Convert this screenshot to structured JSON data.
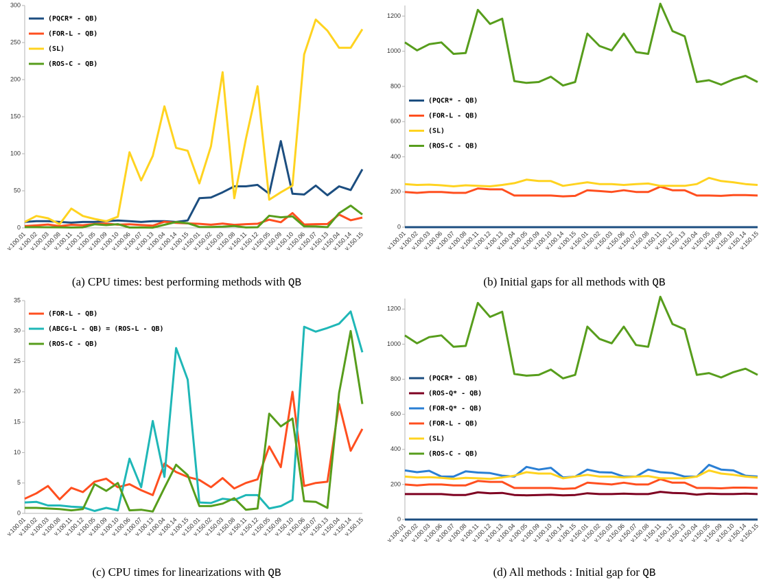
{
  "chart_data": [
    {
      "type": "line",
      "caption_label": "(a)",
      "caption": "CPU times: best performing methods with",
      "caption_code": "QB",
      "categories": [
        "v.100.01",
        "v.100.02",
        "v.100.03",
        "v.100.08",
        "v.100.11",
        "v.100.12",
        "v.100.05",
        "v.100.09",
        "v.100.10",
        "v.100.06",
        "v.100.07",
        "v.100.13",
        "v.100.04",
        "v.100.14",
        "v.100.15",
        "v.150.01",
        "v.150.02",
        "v.150.03",
        "v.150.08",
        "v.150.11",
        "v.150.12",
        "v.150.05",
        "v.150.09",
        "v.150.10",
        "v.150.06",
        "v.150.07",
        "v.150.13",
        "v.150.04",
        "v.150.14",
        "v.150.15"
      ],
      "ylim": [
        0,
        300
      ],
      "yticks": [
        0,
        50,
        100,
        150,
        200,
        250,
        300
      ],
      "grid": false,
      "legend": "upper left",
      "series": [
        {
          "name": "(PQCR* - QB)",
          "color": "#1c4e80",
          "values": [
            8,
            9,
            9,
            8,
            7,
            8,
            8,
            9,
            10,
            9,
            8,
            9,
            9,
            8,
            10,
            40,
            41,
            48,
            56,
            56,
            58,
            46,
            117,
            46,
            45,
            57,
            44,
            56,
            51,
            79
          ]
        },
        {
          "name": "(FOR-L - QB)",
          "color": "#ff4f1f",
          "values": [
            2.4,
            3.3,
            4.5,
            2.3,
            4.2,
            3.5,
            5.2,
            5.7,
            4.3,
            4.8,
            3.8,
            3,
            8.2,
            6.8,
            6,
            5.5,
            4.3,
            5.8,
            4.1,
            5,
            5.6,
            11,
            7.6,
            20,
            4.5,
            5,
            5.2,
            18,
            10.3,
            13.9
          ]
        },
        {
          "name": "(SL)",
          "color": "#ffd320",
          "values": [
            8,
            16,
            13,
            5,
            26,
            16,
            12,
            9,
            15,
            102,
            64,
            97,
            164,
            108,
            104,
            60,
            110,
            210,
            40,
            120,
            191,
            38,
            48,
            57,
            234,
            281,
            266,
            243,
            243,
            268
          ]
        },
        {
          "name": "(ROS-C - QB)",
          "color": "#579d1c",
          "values": [
            0.9,
            0.9,
            0.8,
            0.7,
            0.5,
            0.7,
            4.8,
            3.7,
            5,
            0.5,
            0.6,
            0.3,
            4.2,
            8,
            6.3,
            1.2,
            1.2,
            1.6,
            2.5,
            0.6,
            0.8,
            16.4,
            14.3,
            15.6,
            2,
            1.9,
            0.9,
            19.8,
            30,
            18
          ]
        }
      ]
    },
    {
      "type": "line",
      "caption_label": "(b)",
      "caption": "Initial gaps for all methods with",
      "caption_code": "QB",
      "categories": [
        "v.100.01",
        "v.100.02",
        "v.100.03",
        "v.100.06",
        "v.100.07",
        "v.100.08",
        "v.100.11",
        "v.100.12",
        "v.100.13",
        "v.100.04",
        "v.100.05",
        "v.100.09",
        "v.100.10",
        "v.100.14",
        "v.100.15",
        "v.150.01",
        "v.150.02",
        "v.150.03",
        "v.150.06",
        "v.150.07",
        "v.150.08",
        "v.150.11",
        "v.150.12",
        "v.150.13",
        "v.150.04",
        "v.150.05",
        "v.150.09",
        "v.150.10",
        "v.150.14",
        "v.150.15"
      ],
      "ylim": [
        0,
        1260
      ],
      "yticks": [
        0,
        200,
        400,
        600,
        800,
        1000,
        1200
      ],
      "grid": false,
      "legend": "center left",
      "series": [
        {
          "name": "(PQCR* - QB)",
          "color": "#1c4e80",
          "values": [
            0,
            0,
            0,
            0,
            0,
            0,
            0,
            0,
            0,
            0,
            0,
            0,
            0,
            0,
            0,
            0,
            0,
            0,
            0,
            0,
            0,
            0,
            0,
            0,
            0,
            0,
            0,
            0,
            0,
            0
          ]
        },
        {
          "name": "(FOR-L - QB)",
          "color": "#ff4f1f",
          "values": [
            200,
            195,
            200,
            200,
            195,
            195,
            220,
            215,
            215,
            180,
            180,
            180,
            180,
            175,
            178,
            210,
            205,
            200,
            210,
            200,
            200,
            230,
            210,
            210,
            180,
            180,
            178,
            182,
            182,
            180
          ]
        },
        {
          "name": "(SL)",
          "color": "#ffd320",
          "values": [
            245,
            240,
            242,
            238,
            232,
            238,
            235,
            232,
            240,
            250,
            270,
            262,
            262,
            235,
            245,
            255,
            245,
            245,
            240,
            245,
            248,
            235,
            235,
            235,
            245,
            280,
            262,
            255,
            245,
            240
          ]
        },
        {
          "name": "(ROS-C - QB)",
          "color": "#579d1c",
          "values": [
            1050,
            1005,
            1040,
            1050,
            985,
            990,
            1235,
            1155,
            1185,
            830,
            820,
            825,
            855,
            805,
            825,
            1100,
            1030,
            1005,
            1100,
            995,
            985,
            1270,
            1115,
            1085,
            825,
            835,
            810,
            840,
            860,
            825
          ]
        }
      ]
    },
    {
      "type": "line",
      "caption_label": "(c)",
      "caption": "CPU times for linearizations with",
      "caption_code": "QB",
      "categories": [
        "v.100.01",
        "v.100.02",
        "v.100.03",
        "v.100.08",
        "v.100.11",
        "v.100.12",
        "v.100.05",
        "v.100.09",
        "v.100.10",
        "v.100.06",
        "v.100.07",
        "v.100.13",
        "v.100.04",
        "v.100.14",
        "v.100.15",
        "v.150.01",
        "v.150.02",
        "v.150.03",
        "v.150.08",
        "v.150.11",
        "v.150.12",
        "v.150.05",
        "v.150.09",
        "v.150.10",
        "v.150.06",
        "v.150.07",
        "v.150.13",
        "v.150.04",
        "v.150.14",
        "v.150.15"
      ],
      "ylim": [
        0,
        35
      ],
      "yticks": [
        0,
        5,
        10,
        15,
        20,
        25,
        30,
        35
      ],
      "grid": false,
      "legend": "upper left",
      "series": [
        {
          "name": "(FOR-L - QB)",
          "color": "#ff4f1f",
          "values": [
            2.4,
            3.3,
            4.5,
            2.3,
            4.2,
            3.5,
            5.2,
            5.7,
            4.3,
            4.8,
            3.8,
            3,
            8.2,
            6.8,
            6,
            5.5,
            4.3,
            5.8,
            4.1,
            5,
            5.6,
            11,
            7.6,
            20,
            4.5,
            5,
            5.2,
            18,
            10.3,
            13.9
          ]
        },
        {
          "name": "(ABCG-L - QB) = (ROS-L - QB)",
          "color": "#1fb7b7",
          "values": [
            1.8,
            1.9,
            1.3,
            1.3,
            1.1,
            1,
            0.4,
            0.9,
            0.5,
            9,
            4.3,
            15.2,
            6,
            27.2,
            22,
            1.8,
            1.7,
            2.4,
            2.2,
            3,
            3,
            0.8,
            1.2,
            2.2,
            30.7,
            29.9,
            30.5,
            31.2,
            33.2,
            26.5
          ]
        },
        {
          "name": "(ROS-C - QB)",
          "color": "#579d1c",
          "values": [
            0.9,
            0.9,
            0.8,
            0.7,
            0.5,
            0.7,
            4.8,
            3.7,
            5,
            0.5,
            0.6,
            0.3,
            4.2,
            8,
            6.3,
            1.2,
            1.2,
            1.6,
            2.5,
            0.6,
            0.8,
            16.4,
            14.3,
            15.6,
            2,
            1.9,
            0.9,
            19.8,
            30,
            18
          ]
        }
      ]
    },
    {
      "type": "line",
      "caption_label": "(d)",
      "caption": "All methods : Initial gap for",
      "caption_code": "QB",
      "categories": [
        "v.100.01",
        "v.100.02",
        "v.100.03",
        "v.100.06",
        "v.100.07",
        "v.100.08",
        "v.100.11",
        "v.100.12",
        "v.100.13",
        "v.100.04",
        "v.100.05",
        "v.100.09",
        "v.100.10",
        "v.100.14",
        "v.100.15",
        "v.150.01",
        "v.150.02",
        "v.150.03",
        "v.150.06",
        "v.150.07",
        "v.150.08",
        "v.150.11",
        "v.150.12",
        "v.150.13",
        "v.150.04",
        "v.150.05",
        "v.150.09",
        "v.150.10",
        "v.150.14",
        "v.150.15"
      ],
      "ylim": [
        0,
        1260
      ],
      "yticks": [
        0,
        200,
        400,
        600,
        800,
        1000,
        1200
      ],
      "grid": false,
      "legend": "center left",
      "series": [
        {
          "name": "(PQCR* - QB)",
          "color": "#1c4e80",
          "values": [
            0,
            0,
            0,
            0,
            0,
            0,
            0,
            0,
            0,
            0,
            0,
            0,
            0,
            0,
            0,
            0,
            0,
            0,
            0,
            0,
            0,
            0,
            0,
            0,
            0,
            0,
            0,
            0,
            0,
            0
          ]
        },
        {
          "name": "(ROS-Q* - QB)",
          "color": "#7e0021",
          "values": [
            145,
            145,
            145,
            145,
            140,
            140,
            155,
            150,
            152,
            140,
            138,
            140,
            142,
            138,
            140,
            150,
            145,
            145,
            148,
            145,
            145,
            158,
            152,
            150,
            142,
            148,
            145,
            145,
            148,
            145
          ]
        },
        {
          "name": "(FOR-Q* - QB)",
          "color": "#2a7fd4",
          "values": [
            280,
            270,
            278,
            245,
            245,
            275,
            268,
            265,
            250,
            245,
            300,
            285,
            295,
            240,
            245,
            285,
            270,
            268,
            245,
            245,
            285,
            270,
            265,
            245,
            245,
            312,
            285,
            280,
            250,
            245
          ]
        },
        {
          "name": "(FOR-L - QB)",
          "color": "#ff4f1f",
          "values": [
            200,
            195,
            200,
            200,
            195,
            195,
            220,
            215,
            215,
            180,
            180,
            180,
            180,
            175,
            178,
            210,
            205,
            200,
            210,
            200,
            200,
            230,
            210,
            210,
            180,
            180,
            178,
            182,
            182,
            180
          ]
        },
        {
          "name": "(SL)",
          "color": "#ffd320",
          "values": [
            245,
            240,
            242,
            238,
            232,
            238,
            235,
            232,
            240,
            250,
            270,
            262,
            262,
            235,
            245,
            255,
            245,
            245,
            240,
            245,
            248,
            235,
            235,
            235,
            245,
            280,
            262,
            255,
            245,
            240
          ]
        },
        {
          "name": "(ROS-C - QB)",
          "color": "#579d1c",
          "values": [
            1050,
            1005,
            1040,
            1050,
            985,
            990,
            1235,
            1155,
            1185,
            830,
            820,
            825,
            855,
            805,
            825,
            1100,
            1030,
            1005,
            1100,
            995,
            985,
            1270,
            1115,
            1085,
            825,
            835,
            810,
            840,
            860,
            825
          ]
        }
      ]
    }
  ]
}
